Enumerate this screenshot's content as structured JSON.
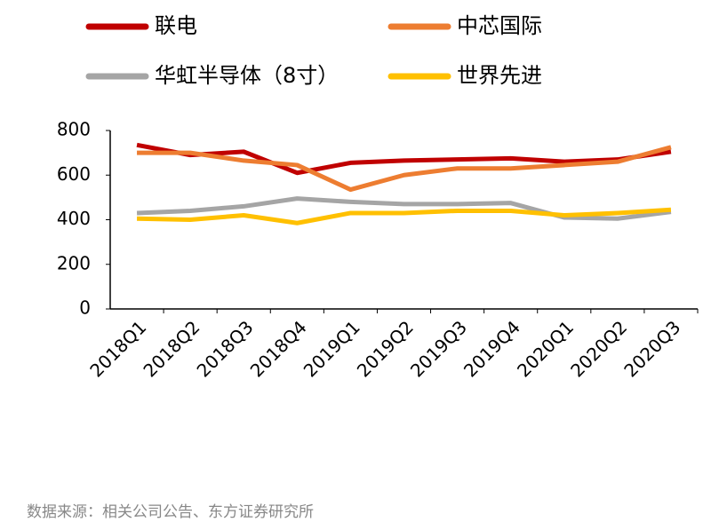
{
  "chart_data": {
    "type": "line",
    "categories": [
      "2018Q1",
      "2018Q2",
      "2018Q3",
      "2018Q4",
      "2019Q1",
      "2019Q2",
      "2019Q3",
      "2019Q4",
      "2020Q1",
      "2020Q2",
      "2020Q3"
    ],
    "series": [
      {
        "name": "联电",
        "color": "#c00000",
        "values": [
          735,
          690,
          705,
          610,
          655,
          665,
          670,
          675,
          660,
          670,
          705
        ]
      },
      {
        "name": "中芯国际",
        "color": "#ed7d31",
        "values": [
          700,
          700,
          665,
          645,
          535,
          600,
          630,
          630,
          645,
          660,
          725
        ]
      },
      {
        "name": "华虹半导体（8寸）",
        "color": "#a5a5a5",
        "values": [
          430,
          440,
          460,
          495,
          480,
          470,
          470,
          475,
          410,
          405,
          435
        ]
      },
      {
        "name": "世界先进",
        "color": "#ffc000",
        "values": [
          405,
          400,
          420,
          385,
          430,
          430,
          440,
          440,
          420,
          430,
          445
        ]
      }
    ],
    "ylim": [
      0,
      800
    ],
    "yticks": [
      0,
      200,
      400,
      600,
      800
    ],
    "grid": false,
    "source": "数据来源：相关公司公告、东方证券研究所"
  }
}
